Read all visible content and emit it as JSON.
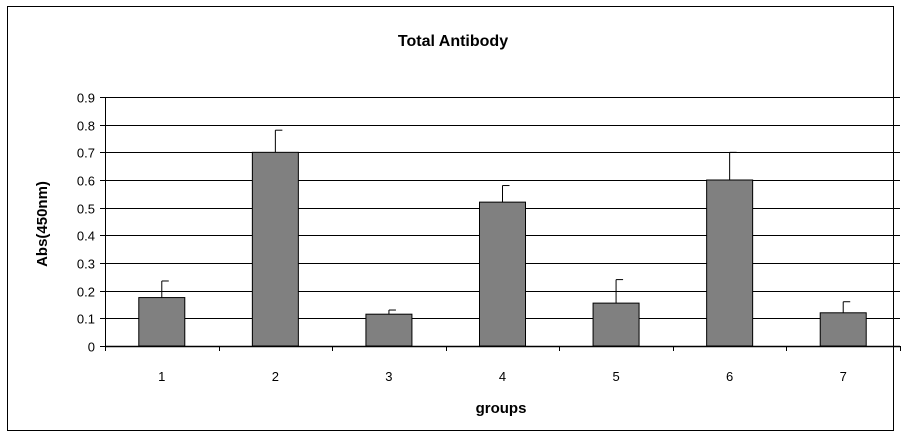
{
  "chart_data": {
    "type": "bar",
    "title": "Total Antibody",
    "xlabel": "groups",
    "ylabel": "Abs(450nm)",
    "categories": [
      "1",
      "2",
      "3",
      "4",
      "5",
      "6",
      "7"
    ],
    "series": [
      {
        "values": [
          0.175,
          0.7,
          0.115,
          0.52,
          0.155,
          0.6,
          0.12
        ],
        "error_plus": [
          0.06,
          0.08,
          0.015,
          0.06,
          0.085,
          0.1,
          0.04
        ]
      }
    ],
    "ylim": [
      0,
      0.9
    ],
    "yticks": [
      "0",
      "0.1",
      "0.2",
      "0.3",
      "0.4",
      "0.5",
      "0.6",
      "0.7",
      "0.8",
      "0.9"
    ],
    "grid": true,
    "legend": "none",
    "colors": {
      "bar_fill": "#808080",
      "bar_stroke": "#000000",
      "grid": "#000000",
      "axis": "#000000",
      "text": "#000000"
    }
  }
}
